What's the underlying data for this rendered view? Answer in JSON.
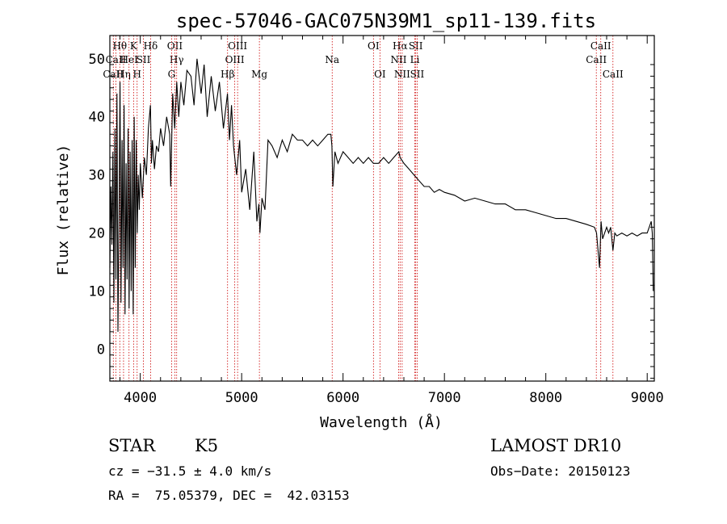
{
  "chart_data": {
    "type": "line",
    "title": "spec-57046-GAC075N39M1_sp11-139.fits",
    "xlabel": "Wavelength (Å)",
    "ylabel": "Flux (relative)",
    "xlim": [
      3700,
      9070
    ],
    "ylim": [
      -5.5,
      54
    ],
    "x_ticks": [
      4000,
      5000,
      6000,
      7000,
      8000,
      9000
    ],
    "y_ticks": [
      0,
      10,
      20,
      30,
      40,
      50
    ],
    "grid": false,
    "line_color": "#000000",
    "marker_color": "#cc0000",
    "series": [
      {
        "x": [
          3700,
          3710,
          3720,
          3730,
          3740,
          3750,
          3760,
          3770,
          3780,
          3790,
          3800,
          3810,
          3820,
          3830,
          3840,
          3850,
          3860,
          3870,
          3880,
          3890,
          3900,
          3910,
          3920,
          3930,
          3940,
          3950,
          3960,
          3970,
          3980,
          3990,
          4000,
          4020,
          4040,
          4060,
          4080,
          4100,
          4110,
          4120,
          4140,
          4160,
          4180,
          4200,
          4230,
          4260,
          4290,
          4300,
          4320,
          4340,
          4360,
          4380,
          4400,
          4430,
          4460,
          4500,
          4530,
          4560,
          4600,
          4630,
          4660,
          4700,
          4740,
          4780,
          4820,
          4860,
          4880,
          4900,
          4920,
          4950,
          4980,
          5000,
          5040,
          5080,
          5120,
          5150,
          5170,
          5180,
          5200,
          5230,
          5260,
          5300,
          5350,
          5400,
          5450,
          5500,
          5550,
          5600,
          5650,
          5700,
          5750,
          5800,
          5850,
          5880,
          5890,
          5900,
          5920,
          5950,
          6000,
          6050,
          6100,
          6150,
          6200,
          6250,
          6300,
          6350,
          6400,
          6450,
          6500,
          6550,
          6563,
          6600,
          6650,
          6700,
          6750,
          6800,
          6850,
          6900,
          6950,
          7000,
          7100,
          7200,
          7300,
          7400,
          7500,
          7600,
          7700,
          7800,
          7900,
          8000,
          8100,
          8200,
          8300,
          8400,
          8480,
          8500,
          8530,
          8545,
          8560,
          8600,
          8620,
          8640,
          8662,
          8680,
          8700,
          8750,
          8800,
          8850,
          8900,
          8950,
          9000,
          9020,
          9040,
          9050,
          9060
        ],
        "y": [
          14,
          28,
          18,
          34,
          8,
          38,
          12,
          44,
          3,
          22,
          46,
          8,
          36,
          14,
          42,
          6,
          32,
          12,
          38,
          7,
          34,
          10,
          36,
          6,
          40,
          14,
          36,
          20,
          30,
          24,
          32,
          26,
          33,
          30,
          38,
          42,
          32,
          36,
          31,
          35,
          34,
          38,
          35,
          40,
          37,
          28,
          44,
          38,
          46,
          40,
          46,
          42,
          48,
          47,
          42,
          50,
          44,
          49,
          40,
          47,
          41,
          46,
          38,
          44,
          36,
          42,
          35,
          30,
          36,
          27,
          31,
          24,
          34,
          22,
          25,
          20,
          26,
          24,
          36,
          35,
          33,
          36,
          34,
          37,
          36,
          36,
          35,
          36,
          35,
          36,
          37,
          37,
          35,
          28,
          34,
          32,
          34,
          33,
          32,
          33,
          32,
          33,
          32,
          32,
          33,
          32,
          33,
          34,
          33,
          32,
          31,
          30,
          29,
          28,
          28,
          27,
          27.5,
          27,
          26.5,
          25.5,
          26,
          25.5,
          25,
          25,
          24,
          24,
          23.5,
          23,
          22.5,
          22.5,
          22,
          21.5,
          21,
          20,
          14,
          22,
          19,
          21,
          20,
          21,
          17,
          20,
          19.5,
          20,
          19.5,
          20,
          19.5,
          20,
          20,
          21,
          22,
          20,
          10
        ]
      }
    ],
    "lines": [
      {
        "name": "Hθ",
        "x": 3798,
        "row": 1
      },
      {
        "name": "CaII",
        "x": 3734,
        "row": 3
      },
      {
        "name": "CaII",
        "x": 3760,
        "row": 2
      },
      {
        "name": "Hη",
        "x": 3835,
        "row": 3
      },
      {
        "name": "HeI",
        "x": 3889,
        "row": 2
      },
      {
        "name": "K",
        "x": 3934,
        "row": 1
      },
      {
        "name": "H",
        "x": 3969,
        "row": 3
      },
      {
        "name": "SII",
        "x": 4031,
        "row": 2
      },
      {
        "name": "Hδ",
        "x": 4102,
        "row": 1
      },
      {
        "name": "OII",
        "x": 4341,
        "row": 1
      },
      {
        "name": "Hγ",
        "x": 4359,
        "row": 2
      },
      {
        "name": "G",
        "x": 4309,
        "row": 3
      },
      {
        "name": "OIII",
        "x": 4960,
        "row": 1
      },
      {
        "name": "OIII",
        "x": 4932,
        "row": 2
      },
      {
        "name": "Hβ",
        "x": 4861,
        "row": 3
      },
      {
        "name": "Mg",
        "x": 5175,
        "row": 3
      },
      {
        "name": "Na",
        "x": 5893,
        "row": 2
      },
      {
        "name": "OI",
        "x": 6300,
        "row": 1
      },
      {
        "name": "OI",
        "x": 6364,
        "row": 3
      },
      {
        "name": "Hα",
        "x": 6563,
        "row": 1
      },
      {
        "name": "NII",
        "x": 6548,
        "row": 2
      },
      {
        "name": "NII",
        "x": 6583,
        "row": 3
      },
      {
        "name": "SII",
        "x": 6717,
        "row": 1
      },
      {
        "name": "Li",
        "x": 6708,
        "row": 2
      },
      {
        "name": "SII",
        "x": 6731,
        "row": 3
      },
      {
        "name": "CaII",
        "x": 8542,
        "row": 1
      },
      {
        "name": "CaII",
        "x": 8498,
        "row": 2
      },
      {
        "name": "CaII",
        "x": 8662,
        "row": 3
      }
    ]
  },
  "info": {
    "class": "STAR",
    "subclass": "K5",
    "survey": "LAMOST DR10",
    "cz": "cz = −31.5 ± 4.0 km/s",
    "obs_date": "Obs−Date: 20150123",
    "radec": "RA =  75.05379, DEC =  42.03153"
  }
}
